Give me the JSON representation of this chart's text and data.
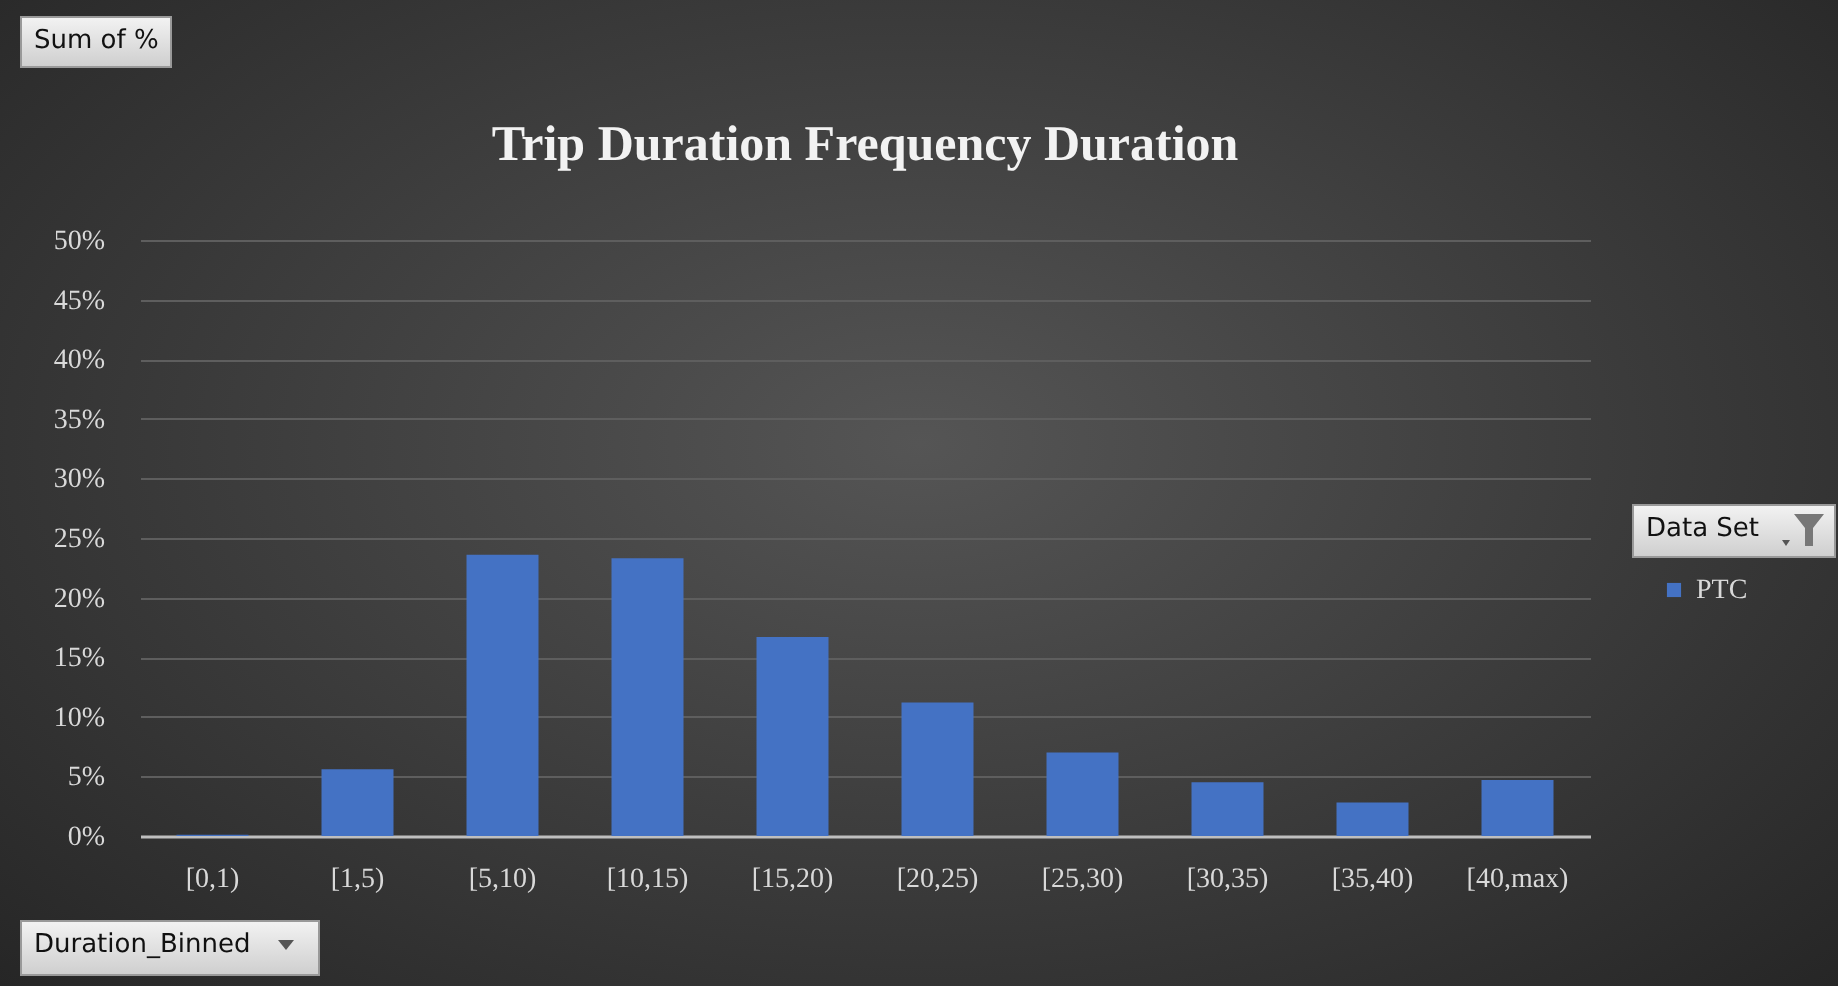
{
  "chart_data": {
    "type": "bar",
    "title": "Trip Duration Frequency Duration",
    "annotations": [
      "Sum of %"
    ],
    "xlabel": "Duration_Binned",
    "legend_title": "Data Set",
    "categories": [
      "[0,1)",
      "[1,5)",
      "[5,10)",
      "[10,15)",
      "[15,20)",
      "[20,25)",
      "[25,30)",
      "[30,35)",
      "[35,40)",
      "[40,max)"
    ],
    "series": [
      {
        "name": "PTC",
        "color": "#4472c4",
        "values": [
          0.1,
          5.6,
          23.6,
          23.3,
          16.7,
          11.2,
          7.0,
          4.5,
          2.8,
          4.7
        ]
      }
    ],
    "ylim": [
      0,
      50
    ],
    "yticks": [
      {
        "value": 0,
        "label": "0%"
      },
      {
        "value": 5,
        "label": "5%"
      },
      {
        "value": 10,
        "label": "10%"
      },
      {
        "value": 15,
        "label": "15%"
      },
      {
        "value": 20,
        "label": "20%"
      },
      {
        "value": 25,
        "label": "25%"
      },
      {
        "value": 30,
        "label": "30%"
      },
      {
        "value": 35,
        "label": "35%"
      },
      {
        "value": 40,
        "label": "40%"
      },
      {
        "value": 45,
        "label": "45%"
      },
      {
        "value": 50,
        "label": "50%"
      }
    ],
    "grid": "y",
    "legend": "right"
  }
}
